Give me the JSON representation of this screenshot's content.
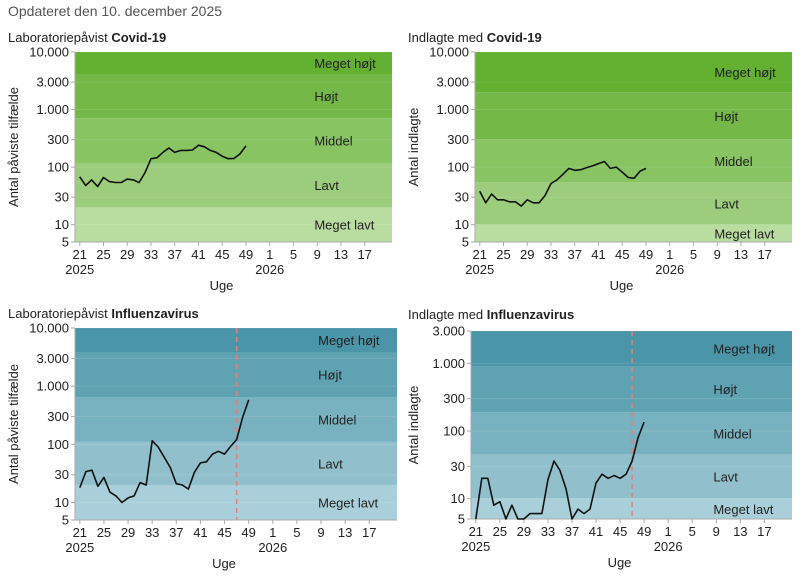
{
  "updated_text": "Opdateret den 10. december 2025",
  "colors": {
    "covid_bands": [
      "#b9dda0",
      "#9ccd7c",
      "#88c462",
      "#74b948",
      "#64b030"
    ],
    "influenza_bands": [
      "#a9d0da",
      "#91c0cc",
      "#78b1bf",
      "#5fa3b3",
      "#4a95a8"
    ],
    "line": "#111111",
    "marker_line": "#e08080",
    "axis": "#aaaaaa"
  },
  "chart_data": [
    {
      "type": "line",
      "title_prefix": "Laboratoriepåvist",
      "title_bold": "Covid-19",
      "ylabel": "Antal påviste tilfælde",
      "xlabel": "Uge",
      "yscale": "log",
      "ylim": [
        5,
        10000
      ],
      "yticks": [
        5,
        10,
        30,
        100,
        300,
        1000,
        3000,
        10000
      ],
      "ytick_labels": [
        "5",
        "10",
        "30",
        "100",
        "300",
        "1.000",
        "3.000",
        "10.000"
      ],
      "xticks": [
        "21",
        "25",
        "29",
        "33",
        "37",
        "41",
        "45",
        "49",
        "1",
        "5",
        "9",
        "13",
        "17"
      ],
      "xtick_years": [
        {
          "at": "21",
          "label": "2025"
        },
        {
          "at": "1",
          "label": "2026"
        }
      ],
      "bands": [
        {
          "label": "Meget lavt",
          "from": 5,
          "to": 20
        },
        {
          "label": "Lavt",
          "from": 20,
          "to": 118
        },
        {
          "label": "Middel",
          "from": 118,
          "to": 710
        },
        {
          "label": "Højt",
          "from": 710,
          "to": 4150
        },
        {
          "label": "Meget højt",
          "from": 4150,
          "to": 10000
        }
      ],
      "band_palette": "covid_bands",
      "marker_week": null,
      "x": [
        21,
        22,
        23,
        24,
        25,
        26,
        27,
        28,
        29,
        30,
        31,
        32,
        33,
        34,
        35,
        36,
        37,
        38,
        39,
        40,
        41,
        42,
        43,
        44,
        45,
        46,
        47,
        48,
        49
      ],
      "values": [
        68,
        48,
        60,
        46,
        66,
        56,
        54,
        54,
        62,
        60,
        54,
        80,
        140,
        145,
        180,
        215,
        180,
        195,
        195,
        198,
        240,
        225,
        195,
        180,
        155,
        140,
        142,
        170,
        235
      ]
    },
    {
      "type": "line",
      "title_prefix": "Indlagte med",
      "title_bold": "Covid-19",
      "ylabel": "Antal indlagte",
      "xlabel": "Uge",
      "yscale": "log",
      "ylim": [
        5,
        10000
      ],
      "yticks": [
        5,
        10,
        30,
        100,
        300,
        1000,
        3000,
        10000
      ],
      "ytick_labels": [
        "5",
        "10",
        "30",
        "100",
        "300",
        "1.000",
        "3.000",
        "10.000"
      ],
      "xticks": [
        "21",
        "25",
        "29",
        "33",
        "37",
        "41",
        "45",
        "49",
        "1",
        "5",
        "9",
        "13",
        "17"
      ],
      "xtick_years": [
        {
          "at": "21",
          "label": "2025"
        },
        {
          "at": "1",
          "label": "2026"
        }
      ],
      "bands": [
        {
          "label": "Meget lavt",
          "from": 5,
          "to": 10
        },
        {
          "label": "Lavt",
          "from": 10,
          "to": 55
        },
        {
          "label": "Middel",
          "from": 55,
          "to": 300
        },
        {
          "label": "Højt",
          "from": 300,
          "to": 2000
        },
        {
          "label": "Meget højt",
          "from": 2000,
          "to": 10000
        }
      ],
      "band_palette": "covid_bands",
      "marker_week": null,
      "x": [
        21,
        22,
        23,
        24,
        25,
        26,
        27,
        28,
        29,
        30,
        31,
        32,
        33,
        34,
        35,
        36,
        37,
        38,
        39,
        40,
        41,
        42,
        43,
        44,
        45,
        46,
        47,
        48,
        49
      ],
      "values": [
        38,
        24,
        34,
        27,
        27,
        25,
        25,
        21,
        27,
        24,
        24,
        32,
        52,
        60,
        75,
        95,
        88,
        90,
        98,
        105,
        115,
        125,
        95,
        100,
        82,
        66,
        64,
        85,
        95
      ]
    },
    {
      "type": "line",
      "title_prefix": "Laboratoriepåvist",
      "title_bold": "Influenzavirus",
      "ylabel": "Antal påviste tilfælde",
      "xlabel": "Uge",
      "yscale": "log",
      "ylim": [
        5,
        10000
      ],
      "yticks": [
        5,
        10,
        30,
        100,
        300,
        1000,
        3000,
        10000
      ],
      "ytick_labels": [
        "5",
        "10",
        "30",
        "100",
        "300",
        "1.000",
        "3.000",
        "10.000"
      ],
      "xticks": [
        "21",
        "25",
        "29",
        "33",
        "37",
        "41",
        "45",
        "49",
        "1",
        "5",
        "9",
        "13",
        "17"
      ],
      "xtick_years": [
        {
          "at": "21",
          "label": "2025"
        },
        {
          "at": "1",
          "label": "2026"
        }
      ],
      "bands": [
        {
          "label": "Meget lavt",
          "from": 5,
          "to": 20
        },
        {
          "label": "Lavt",
          "from": 20,
          "to": 110
        },
        {
          "label": "Middel",
          "from": 110,
          "to": 650
        },
        {
          "label": "Højt",
          "from": 650,
          "to": 3800
        },
        {
          "label": "Meget højt",
          "from": 3800,
          "to": 10000
        }
      ],
      "band_palette": "influenza_bands",
      "marker_week": 47,
      "x": [
        21,
        22,
        23,
        24,
        25,
        26,
        27,
        28,
        29,
        30,
        31,
        32,
        33,
        34,
        35,
        36,
        37,
        38,
        39,
        40,
        41,
        42,
        43,
        44,
        45,
        46,
        47,
        48,
        49
      ],
      "values": [
        18,
        34,
        36,
        19,
        27,
        15,
        13,
        10,
        12,
        13,
        22,
        20,
        115,
        90,
        60,
        40,
        21,
        20,
        17,
        33,
        48,
        50,
        68,
        76,
        68,
        92,
        120,
        290,
        580
      ]
    },
    {
      "type": "line",
      "title_prefix": "Indlagte med",
      "title_bold": "Influenzavirus",
      "ylabel": "Antal indlagte",
      "xlabel": "Uge",
      "yscale": "log",
      "ylim": [
        5,
        3000
      ],
      "yticks": [
        5,
        10,
        30,
        100,
        300,
        1000,
        3000
      ],
      "ytick_labels": [
        "5",
        "10",
        "30",
        "100",
        "300",
        "1.000",
        "3.000"
      ],
      "xticks": [
        "21",
        "25",
        "29",
        "33",
        "37",
        "41",
        "45",
        "49",
        "1",
        "5",
        "9",
        "13",
        "17"
      ],
      "xtick_years": [
        {
          "at": "21",
          "label": "2025"
        },
        {
          "at": "1",
          "label": "2026"
        }
      ],
      "bands": [
        {
          "label": "Meget lavt",
          "from": 5,
          "to": 10
        },
        {
          "label": "Lavt",
          "from": 10,
          "to": 45
        },
        {
          "label": "Middel",
          "from": 45,
          "to": 190
        },
        {
          "label": "Højt",
          "from": 190,
          "to": 900
        },
        {
          "label": "Meget højt",
          "from": 900,
          "to": 3000
        }
      ],
      "band_palette": "influenza_bands",
      "marker_week": 47,
      "x": [
        21,
        22,
        23,
        24,
        25,
        26,
        27,
        28,
        29,
        30,
        31,
        32,
        33,
        34,
        35,
        36,
        37,
        38,
        39,
        40,
        41,
        42,
        43,
        44,
        45,
        46,
        47,
        48,
        49
      ],
      "values": [
        5,
        20,
        20,
        8,
        9,
        5,
        8,
        5,
        5,
        6,
        6,
        6,
        19,
        36,
        26,
        14,
        5,
        7,
        6,
        7,
        17,
        23,
        20,
        22,
        20,
        23,
        36,
        80,
        135
      ]
    }
  ]
}
